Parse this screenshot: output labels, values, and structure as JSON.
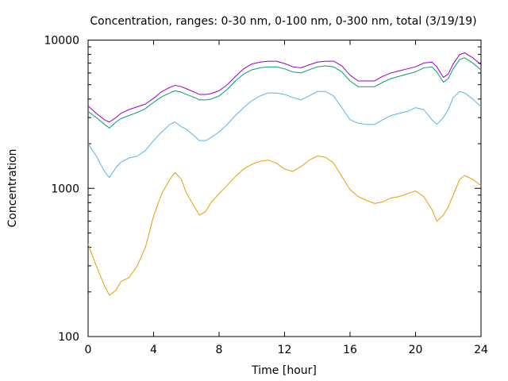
{
  "chart_data": {
    "type": "line",
    "title": "Concentration, ranges: 0-30 nm, 0-100 nm, 0-300 nm, total (3/19/19)",
    "xlabel": "Time [hour]",
    "ylabel": "Concentration",
    "xlim": [
      0,
      24
    ],
    "ylim": [
      100,
      10000
    ],
    "yscale": "log",
    "grid": false,
    "xticks": [
      0,
      4,
      8,
      12,
      16,
      20,
      24
    ],
    "xtick_labels": [
      "0",
      "4",
      "8",
      "12",
      "16",
      "20",
      "24"
    ],
    "yticks": [
      100,
      1000,
      10000
    ],
    "ytick_labels": [
      "100",
      "1000",
      "10000"
    ],
    "x": [
      0,
      0.5,
      1,
      1.3,
      1.7,
      2,
      2.5,
      3,
      3.5,
      4,
      4.5,
      5,
      5.3,
      5.7,
      6,
      6.5,
      6.8,
      7.2,
      7.5,
      8,
      8.5,
      9,
      9.5,
      10,
      10.5,
      11,
      11.5,
      12,
      12.5,
      13,
      13.5,
      14,
      14.5,
      15,
      15.5,
      16,
      16.5,
      17,
      17.5,
      18,
      18.5,
      19,
      19.5,
      20,
      20.5,
      21,
      21.3,
      21.7,
      22,
      22.3,
      22.7,
      23,
      23.5,
      24
    ],
    "series": [
      {
        "color": "#e69f00",
        "values": [
          420,
          300,
          220,
          190,
          205,
          235,
          250,
          300,
          400,
          650,
          920,
          1150,
          1280,
          1150,
          930,
          750,
          660,
          700,
          800,
          920,
          1050,
          1200,
          1350,
          1450,
          1520,
          1550,
          1480,
          1350,
          1300,
          1400,
          1550,
          1650,
          1620,
          1480,
          1200,
          980,
          880,
          830,
          790,
          810,
          860,
          880,
          920,
          960,
          880,
          720,
          600,
          660,
          750,
          900,
          1150,
          1220,
          1150,
          1040
        ]
      },
      {
        "color": "#56b4e9",
        "values": [
          2000,
          1650,
          1300,
          1180,
          1380,
          1500,
          1600,
          1650,
          1800,
          2100,
          2400,
          2700,
          2800,
          2600,
          2500,
          2250,
          2100,
          2100,
          2200,
          2400,
          2700,
          3100,
          3500,
          3900,
          4200,
          4400,
          4400,
          4300,
          4100,
          3950,
          4200,
          4500,
          4500,
          4200,
          3500,
          2900,
          2750,
          2700,
          2700,
          2900,
          3100,
          3200,
          3300,
          3500,
          3400,
          2900,
          2700,
          3000,
          3400,
          4100,
          4500,
          4400,
          4000,
          3550
        ]
      },
      {
        "color": "#009e73",
        "values": [
          3300,
          3000,
          2700,
          2550,
          2800,
          2950,
          3100,
          3250,
          3450,
          3800,
          4150,
          4400,
          4550,
          4450,
          4300,
          4100,
          3950,
          3950,
          4000,
          4200,
          4650,
          5300,
          5900,
          6300,
          6500,
          6600,
          6600,
          6400,
          6100,
          6000,
          6300,
          6600,
          6700,
          6600,
          6100,
          5300,
          4850,
          4850,
          4850,
          5200,
          5500,
          5700,
          5900,
          6100,
          6500,
          6600,
          6100,
          5200,
          5500,
          6400,
          7400,
          7600,
          7000,
          6300
        ]
      },
      {
        "color": "#9400d3",
        "values": [
          3600,
          3200,
          2900,
          2800,
          3000,
          3200,
          3400,
          3550,
          3700,
          4050,
          4500,
          4800,
          4950,
          4850,
          4700,
          4450,
          4300,
          4300,
          4350,
          4550,
          5000,
          5700,
          6400,
          6900,
          7100,
          7200,
          7200,
          6950,
          6600,
          6500,
          6800,
          7100,
          7200,
          7200,
          6700,
          5800,
          5300,
          5300,
          5300,
          5700,
          6000,
          6200,
          6400,
          6600,
          7000,
          7100,
          6600,
          5600,
          5900,
          6900,
          8000,
          8200,
          7600,
          6800
        ]
      }
    ]
  }
}
